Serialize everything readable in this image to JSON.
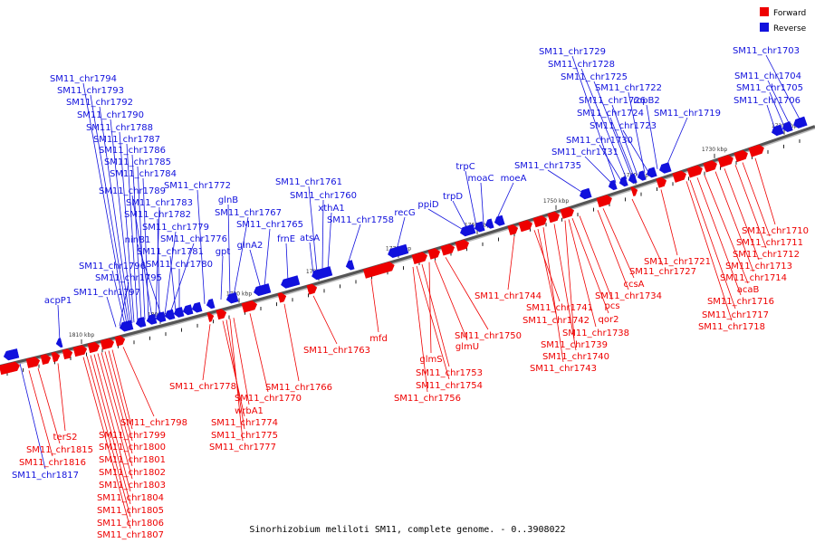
{
  "caption": "Sinorhizobium meliloti SM11, complete genome. - 0..3908022",
  "colors": {
    "forward": "#ee0000",
    "reverse": "#1111dd",
    "axis": "#777777"
  },
  "legend": [
    {
      "label": "Forward",
      "strand": "forward"
    },
    {
      "label": "Reverse",
      "strand": "reverse"
    }
  ],
  "ticks": [
    "1810 kbp",
    "1800 kbp",
    "1790 kbp",
    "1780 kbp",
    "1770 kbp",
    "1760 kbp",
    "1750 kbp",
    "1740 kbp",
    "1730 kbp",
    "1720 kbp"
  ],
  "reverse_labels": [
    "SM11_chr1794",
    "SM11_chr1793",
    "SM11_chr1792",
    "SM11_chr1790",
    "SM11_chr1788",
    "SM11_chr1787",
    "SM11_chr1786",
    "SM11_chr1785",
    "SM11_chr1784",
    "SM11_chr1789",
    "SM11_chr1783",
    "SM11_chr1782",
    "ninB1",
    "SM11_chr1779",
    "SM11_chr1776",
    "SM11_chr1781",
    "SM11_chr1780",
    "SM11_chr1796",
    "SM11_chr1795",
    "SM11_chr1797",
    "acpP1",
    "SM11_chr1772",
    "glnB",
    "SM11_chr1767",
    "gpt",
    "glnA2",
    "SM11_chr1765",
    "frnE",
    "atsA",
    "SM11_chr1761",
    "SM11_chr1760",
    "xthA1",
    "SM11_chr1758",
    "recG",
    "ppiD",
    "trpD",
    "trpC",
    "moaC",
    "moeA",
    "SM11_chr1735",
    "SM11_chr1731",
    "SM11_chr1730",
    "SM11_chr1723",
    "SM11_chr1724",
    "SM11_chr1726",
    "ropB2",
    "SM11_chr1719",
    "SM11_chr1722",
    "SM11_chr1725",
    "SM11_chr1728",
    "SM11_chr1729",
    "SM11_chr1706",
    "SM11_chr1705",
    "SM11_chr1704",
    "SM11_chr1703",
    "SM11_chr1817"
  ],
  "forward_labels": [
    "SM11_chr1798",
    "terS2",
    "SM11_chr1815",
    "SM11_chr1816",
    "SM11_chr1799",
    "SM11_chr1800",
    "SM11_chr1801",
    "SM11_chr1802",
    "SM11_chr1803",
    "SM11_chr1804",
    "SM11_chr1805",
    "SM11_chr1806",
    "SM11_chr1807",
    "SM11_chr1778",
    "SM11_chr1770",
    "wrbA1",
    "SM11_chr1774",
    "SM11_chr1775",
    "SM11_chr1777",
    "SM11_chr1766",
    "SM11_chr1763",
    "mfd",
    "glmS",
    "glmU",
    "SM11_chr1750",
    "SM11_chr1753",
    "SM11_chr1754",
    "SM11_chr1756",
    "SM11_chr1744",
    "SM11_chr1741",
    "SM11_chr1742",
    "SM11_chr1743",
    "SM11_chr1740",
    "SM11_chr1739",
    "SM11_chr1738",
    "qor2",
    "pcs",
    "SM11_chr1734",
    "ccsA",
    "SM11_chr1727",
    "SM11_chr1721",
    "SM11_chr1718",
    "SM11_chr1717",
    "SM11_chr1716",
    "acaB",
    "SM11_chr1714",
    "SM11_chr1713",
    "SM11_chr1712",
    "SM11_chr1711",
    "SM11_chr1710"
  ]
}
